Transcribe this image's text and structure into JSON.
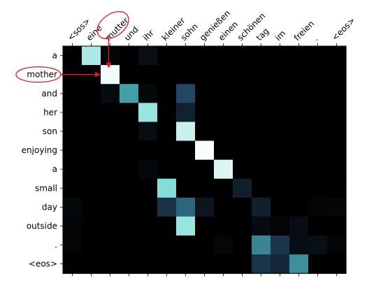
{
  "chart_data": {
    "type": "heatmap",
    "title": "",
    "xlabel": "",
    "ylabel": "",
    "colormap": "bone",
    "value_range": [
      0,
      1
    ],
    "x_tokens": [
      "<sos>",
      "eine",
      "mutter",
      "und",
      "ihr",
      "kleiner",
      "sohn",
      "genießen",
      "einen",
      "schönen",
      "tag",
      "im",
      "freien",
      ".",
      "<eos>"
    ],
    "y_tokens": [
      "a",
      "mother",
      "and",
      "her",
      "son",
      "enjoying",
      "a",
      "small",
      "day",
      "outside",
      ".",
      "<eos>"
    ],
    "values": [
      [
        0.0,
        0.88,
        0.03,
        0.0,
        0.07,
        0.0,
        0.0,
        0.0,
        0.0,
        0.0,
        0.0,
        0.0,
        0.0,
        0.0,
        0.0
      ],
      [
        0.0,
        0.0,
        0.98,
        0.0,
        0.0,
        0.0,
        0.0,
        0.0,
        0.0,
        0.0,
        0.0,
        0.0,
        0.0,
        0.0,
        0.0
      ],
      [
        0.0,
        0.0,
        0.05,
        0.6,
        0.04,
        0.0,
        0.32,
        0.0,
        0.0,
        0.0,
        0.0,
        0.0,
        0.0,
        0.0,
        0.0
      ],
      [
        0.0,
        0.0,
        0.0,
        0.0,
        0.85,
        0.0,
        0.15,
        0.0,
        0.0,
        0.0,
        0.0,
        0.0,
        0.0,
        0.0,
        0.0
      ],
      [
        0.0,
        0.0,
        0.0,
        0.0,
        0.06,
        0.0,
        0.92,
        0.0,
        0.0,
        0.0,
        0.0,
        0.0,
        0.0,
        0.0,
        0.0
      ],
      [
        0.0,
        0.0,
        0.0,
        0.0,
        0.0,
        0.0,
        0.0,
        0.99,
        0.0,
        0.0,
        0.0,
        0.0,
        0.0,
        0.0,
        0.0
      ],
      [
        0.0,
        0.0,
        0.0,
        0.0,
        0.03,
        0.0,
        0.0,
        0.0,
        0.95,
        0.0,
        0.0,
        0.0,
        0.0,
        0.0,
        0.0
      ],
      [
        0.0,
        0.0,
        0.0,
        0.0,
        0.0,
        0.82,
        0.0,
        0.0,
        0.0,
        0.14,
        0.0,
        0.0,
        0.0,
        0.0,
        0.0
      ],
      [
        0.04,
        0.0,
        0.0,
        0.0,
        0.0,
        0.22,
        0.42,
        0.1,
        0.0,
        0.0,
        0.14,
        0.0,
        0.0,
        0.02,
        0.03
      ],
      [
        0.02,
        0.0,
        0.0,
        0.0,
        0.0,
        0.0,
        0.85,
        0.0,
        0.0,
        0.0,
        0.05,
        0.02,
        0.06,
        0.0,
        0.0
      ],
      [
        0.02,
        0.0,
        0.0,
        0.0,
        0.0,
        0.0,
        0.0,
        0.0,
        0.03,
        0.0,
        0.52,
        0.24,
        0.06,
        0.07,
        0.02
      ],
      [
        0.0,
        0.0,
        0.0,
        0.0,
        0.0,
        0.0,
        0.0,
        0.0,
        0.0,
        0.0,
        0.24,
        0.18,
        0.55,
        0.0,
        0.0
      ]
    ],
    "highlight": {
      "x_token": "mutter",
      "y_token": "mother",
      "annotation_color": "#e8141c"
    }
  }
}
